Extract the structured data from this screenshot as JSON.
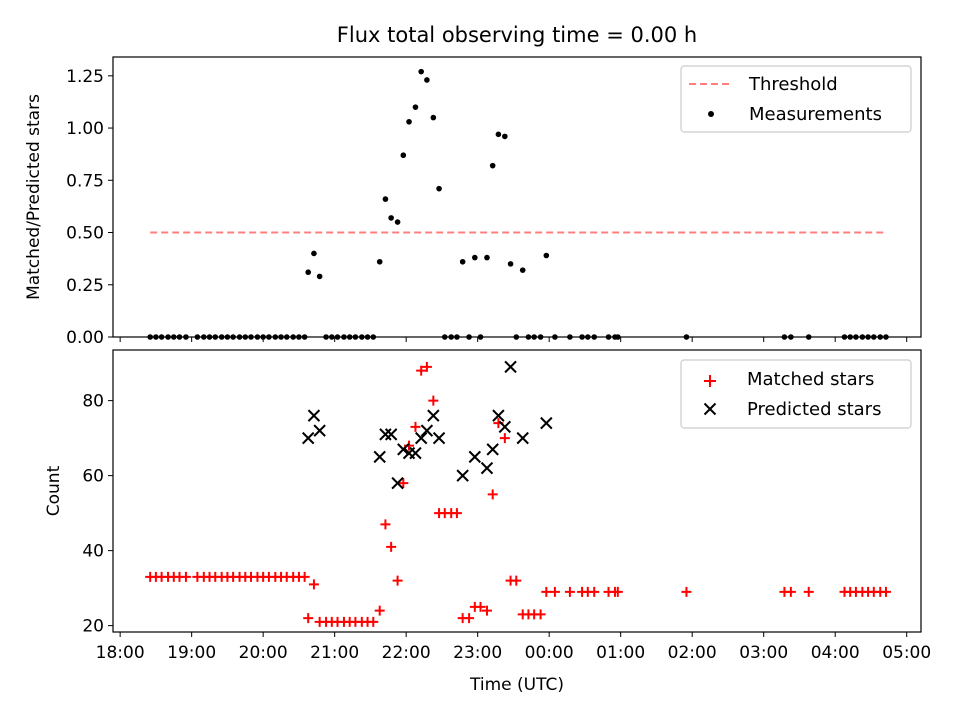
{
  "title": "Flux total observing time = 0.00 h",
  "colors": {
    "threshold": "#ff7f7f",
    "measurement": "#000000",
    "matched": "#ff0000",
    "predicted": "#000000",
    "axis": "#000000"
  },
  "chart_data": [
    {
      "type": "scatter",
      "name": "ratio-panel",
      "ylabel": "Matched/Predicted stars",
      "ylim": [
        0,
        1.34
      ],
      "yticks": [
        0.0,
        0.25,
        0.5,
        0.75,
        1.0,
        1.25
      ],
      "ytick_labels": [
        "0.00",
        "0.25",
        "0.50",
        "0.75",
        "1.00",
        "1.25"
      ],
      "xlim": [
        17.9,
        29.2
      ],
      "legend_position": "top-right",
      "series": [
        {
          "name": "Threshold",
          "kind": "dashed-line",
          "x": [
            18.42,
            28.7
          ],
          "y": [
            0.5,
            0.5
          ]
        },
        {
          "name": "Measurements",
          "kind": "dots",
          "points": [
            [
              18.42,
              0
            ],
            [
              18.5,
              0
            ],
            [
              18.58,
              0
            ],
            [
              18.67,
              0
            ],
            [
              18.75,
              0
            ],
            [
              18.83,
              0
            ],
            [
              18.92,
              0
            ],
            [
              19.08,
              0
            ],
            [
              19.17,
              0
            ],
            [
              19.25,
              0
            ],
            [
              19.33,
              0
            ],
            [
              19.42,
              0
            ],
            [
              19.5,
              0
            ],
            [
              19.58,
              0
            ],
            [
              19.67,
              0
            ],
            [
              19.75,
              0
            ],
            [
              19.83,
              0
            ],
            [
              19.92,
              0
            ],
            [
              20.0,
              0
            ],
            [
              20.08,
              0
            ],
            [
              20.17,
              0
            ],
            [
              20.25,
              0
            ],
            [
              20.33,
              0
            ],
            [
              20.42,
              0
            ],
            [
              20.5,
              0
            ],
            [
              20.58,
              0
            ],
            [
              20.63,
              0.31
            ],
            [
              20.71,
              0.4
            ],
            [
              20.79,
              0.29
            ],
            [
              20.88,
              0
            ],
            [
              20.96,
              0
            ],
            [
              21.04,
              0
            ],
            [
              21.13,
              0
            ],
            [
              21.21,
              0
            ],
            [
              21.29,
              0
            ],
            [
              21.38,
              0
            ],
            [
              21.46,
              0
            ],
            [
              21.54,
              0
            ],
            [
              21.63,
              0.36
            ],
            [
              21.71,
              0.66
            ],
            [
              21.79,
              0.57
            ],
            [
              21.88,
              0.55
            ],
            [
              21.96,
              0.87
            ],
            [
              22.04,
              1.03
            ],
            [
              22.13,
              1.1
            ],
            [
              22.21,
              1.27
            ],
            [
              22.29,
              1.23
            ],
            [
              22.38,
              1.05
            ],
            [
              22.46,
              0.71
            ],
            [
              22.54,
              0
            ],
            [
              22.63,
              0
            ],
            [
              22.71,
              0
            ],
            [
              22.79,
              0.36
            ],
            [
              22.88,
              0
            ],
            [
              22.96,
              0.38
            ],
            [
              23.04,
              0
            ],
            [
              23.13,
              0.38
            ],
            [
              23.21,
              0.82
            ],
            [
              23.29,
              0.97
            ],
            [
              23.38,
              0.96
            ],
            [
              23.46,
              0.35
            ],
            [
              23.54,
              0
            ],
            [
              23.63,
              0.32
            ],
            [
              23.71,
              0
            ],
            [
              23.79,
              0
            ],
            [
              23.88,
              0
            ],
            [
              23.96,
              0.39
            ],
            [
              24.08,
              0
            ],
            [
              24.29,
              0
            ],
            [
              24.46,
              0
            ],
            [
              24.54,
              0
            ],
            [
              24.63,
              0
            ],
            [
              24.83,
              0
            ],
            [
              24.92,
              0
            ],
            [
              24.96,
              0
            ],
            [
              25.92,
              0
            ],
            [
              27.29,
              0
            ],
            [
              27.38,
              0
            ],
            [
              27.63,
              0
            ],
            [
              28.13,
              0
            ],
            [
              28.21,
              0
            ],
            [
              28.29,
              0
            ],
            [
              28.38,
              0
            ],
            [
              28.46,
              0
            ],
            [
              28.54,
              0
            ],
            [
              28.63,
              0
            ],
            [
              28.71,
              0
            ]
          ]
        }
      ]
    },
    {
      "type": "scatter",
      "name": "count-panel",
      "ylabel": "Count",
      "xlabel": "Time (UTC)",
      "ylim": [
        18.3,
        93.5
      ],
      "yticks": [
        20,
        40,
        60,
        80
      ],
      "ytick_labels": [
        "20",
        "40",
        "60",
        "80"
      ],
      "xlim": [
        17.9,
        29.2
      ],
      "xticks": [
        18,
        19,
        20,
        21,
        22,
        23,
        24,
        25,
        26,
        27,
        28,
        29
      ],
      "xtick_labels": [
        "18:00",
        "19:00",
        "20:00",
        "21:00",
        "22:00",
        "23:00",
        "00:00",
        "01:00",
        "02:00",
        "03:00",
        "04:00",
        "05:00"
      ],
      "legend_position": "top-right",
      "series": [
        {
          "name": "Matched stars",
          "kind": "plus",
          "points": [
            [
              18.42,
              33
            ],
            [
              18.5,
              33
            ],
            [
              18.58,
              33
            ],
            [
              18.67,
              33
            ],
            [
              18.75,
              33
            ],
            [
              18.83,
              33
            ],
            [
              18.92,
              33
            ],
            [
              19.08,
              33
            ],
            [
              19.17,
              33
            ],
            [
              19.25,
              33
            ],
            [
              19.33,
              33
            ],
            [
              19.42,
              33
            ],
            [
              19.5,
              33
            ],
            [
              19.58,
              33
            ],
            [
              19.67,
              33
            ],
            [
              19.75,
              33
            ],
            [
              19.83,
              33
            ],
            [
              19.92,
              33
            ],
            [
              20.0,
              33
            ],
            [
              20.08,
              33
            ],
            [
              20.17,
              33
            ],
            [
              20.25,
              33
            ],
            [
              20.33,
              33
            ],
            [
              20.42,
              33
            ],
            [
              20.5,
              33
            ],
            [
              20.58,
              33
            ],
            [
              20.63,
              22
            ],
            [
              20.71,
              31
            ],
            [
              20.79,
              21
            ],
            [
              20.88,
              21
            ],
            [
              20.96,
              21
            ],
            [
              21.04,
              21
            ],
            [
              21.13,
              21
            ],
            [
              21.21,
              21
            ],
            [
              21.29,
              21
            ],
            [
              21.38,
              21
            ],
            [
              21.46,
              21
            ],
            [
              21.54,
              21
            ],
            [
              21.63,
              24
            ],
            [
              21.71,
              47
            ],
            [
              21.79,
              41
            ],
            [
              21.88,
              32
            ],
            [
              21.96,
              58
            ],
            [
              22.04,
              68
            ],
            [
              22.13,
              73
            ],
            [
              22.21,
              88
            ],
            [
              22.29,
              89
            ],
            [
              22.38,
              80
            ],
            [
              22.46,
              50
            ],
            [
              22.54,
              50
            ],
            [
              22.63,
              50
            ],
            [
              22.71,
              50
            ],
            [
              22.79,
              22
            ],
            [
              22.88,
              22
            ],
            [
              22.96,
              25
            ],
            [
              23.04,
              25
            ],
            [
              23.13,
              24
            ],
            [
              23.21,
              55
            ],
            [
              23.29,
              74
            ],
            [
              23.38,
              70
            ],
            [
              23.46,
              32
            ],
            [
              23.54,
              32
            ],
            [
              23.63,
              23
            ],
            [
              23.71,
              23
            ],
            [
              23.79,
              23
            ],
            [
              23.88,
              23
            ],
            [
              23.96,
              29
            ],
            [
              24.08,
              29
            ],
            [
              24.29,
              29
            ],
            [
              24.46,
              29
            ],
            [
              24.54,
              29
            ],
            [
              24.63,
              29
            ],
            [
              24.83,
              29
            ],
            [
              24.92,
              29
            ],
            [
              24.96,
              29
            ],
            [
              25.92,
              29
            ],
            [
              27.29,
              29
            ],
            [
              27.38,
              29
            ],
            [
              27.63,
              29
            ],
            [
              28.13,
              29
            ],
            [
              28.21,
              29
            ],
            [
              28.29,
              29
            ],
            [
              28.38,
              29
            ],
            [
              28.46,
              29
            ],
            [
              28.54,
              29
            ],
            [
              28.63,
              29
            ],
            [
              28.71,
              29
            ]
          ]
        },
        {
          "name": "Predicted stars",
          "kind": "x",
          "points": [
            [
              20.63,
              70
            ],
            [
              20.71,
              76
            ],
            [
              20.79,
              72
            ],
            [
              21.63,
              65
            ],
            [
              21.71,
              71
            ],
            [
              21.79,
              71
            ],
            [
              21.88,
              58
            ],
            [
              21.96,
              67
            ],
            [
              22.04,
              66
            ],
            [
              22.13,
              66
            ],
            [
              22.21,
              70
            ],
            [
              22.29,
              72
            ],
            [
              22.38,
              76
            ],
            [
              22.46,
              70
            ],
            [
              22.79,
              60
            ],
            [
              22.96,
              65
            ],
            [
              23.13,
              62
            ],
            [
              23.21,
              67
            ],
            [
              23.29,
              76
            ],
            [
              23.38,
              73
            ],
            [
              23.46,
              89
            ],
            [
              23.63,
              70
            ],
            [
              23.96,
              74
            ]
          ]
        }
      ]
    }
  ]
}
